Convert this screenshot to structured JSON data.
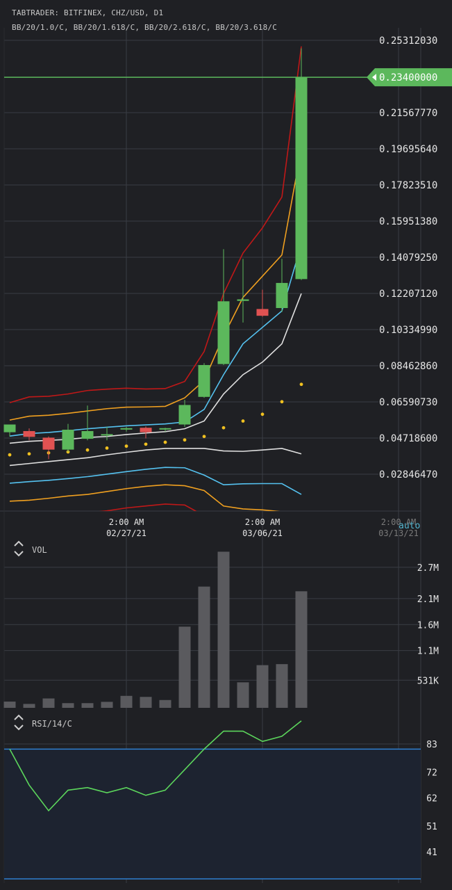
{
  "header": {
    "title": "TABTRADER: BITFINEX, CHZ/USD, D1",
    "indicators": "BB/20/1.0/C, BB/20/1.618/C, BB/20/2.618/C, BB/20/3.618/C"
  },
  "auto_label": "auto",
  "colors": {
    "background": "#1f2024",
    "grid": "#3a3d44",
    "up": "#5cb85c",
    "down": "#e05252",
    "price_line": "#5cb85c",
    "bb1": "#55c2f0",
    "bb1618": "#f0a020",
    "bb2618": "#c01818",
    "bb3618": "#e0e0e0",
    "sar": "#f0c020",
    "volume": "#5a5a5e",
    "rsi": "#5cd65c",
    "rsi_band": "#2f7fd0"
  },
  "chart_data": [
    {
      "type": "candlestick",
      "title": "TABTRADER: BITFINEX, CHZ/USD, D1",
      "y_ticks": [
        "0.25312030",
        "0.23400000",
        "0.21567770",
        "0.19695640",
        "0.17823510",
        "0.15951380",
        "0.14079250",
        "0.12207120",
        "0.10334990",
        "0.08462860",
        "0.06590730",
        "0.04718600",
        "0.02846470"
      ],
      "ylim": [
        0.02,
        0.26
      ],
      "x_ticks": [
        {
          "time": "2:00 AM",
          "date": "02/27/21",
          "index": 6
        },
        {
          "time": "2:00 AM",
          "date": "03/06/21",
          "index": 13
        },
        {
          "time": "2:00 AM",
          "date": "03/13/21",
          "index": 20
        }
      ],
      "last_price_label": "0.23400000",
      "last_price": 0.234,
      "candles": [
        {
          "open": 0.0502,
          "high": 0.053,
          "low": 0.048,
          "close": 0.0542
        },
        {
          "open": 0.0508,
          "high": 0.0522,
          "low": 0.046,
          "close": 0.0478
        },
        {
          "open": 0.0474,
          "high": 0.048,
          "low": 0.0363,
          "close": 0.0412
        },
        {
          "open": 0.0412,
          "high": 0.0545,
          "low": 0.04,
          "close": 0.0515
        },
        {
          "open": 0.0468,
          "high": 0.064,
          "low": 0.046,
          "close": 0.0508
        },
        {
          "open": 0.049,
          "high": 0.053,
          "low": 0.046,
          "close": 0.0492
        },
        {
          "open": 0.052,
          "high": 0.053,
          "low": 0.0505,
          "close": 0.0523
        },
        {
          "open": 0.0525,
          "high": 0.0532,
          "low": 0.047,
          "close": 0.0502
        },
        {
          "open": 0.0518,
          "high": 0.0525,
          "low": 0.0505,
          "close": 0.0523
        },
        {
          "open": 0.0542,
          "high": 0.067,
          "low": 0.053,
          "close": 0.0643
        },
        {
          "open": 0.0685,
          "high": 0.086,
          "low": 0.068,
          "close": 0.085
        },
        {
          "open": 0.0855,
          "high": 0.145,
          "low": 0.085,
          "close": 0.118
        },
        {
          "open": 0.1182,
          "high": 0.14,
          "low": 0.107,
          "close": 0.119
        },
        {
          "open": 0.114,
          "high": 0.124,
          "low": 0.11,
          "close": 0.1105
        },
        {
          "open": 0.1145,
          "high": 0.14,
          "low": 0.1125,
          "close": 0.1275
        },
        {
          "open": 0.1295,
          "high": 0.249,
          "low": 0.129,
          "close": 0.234
        }
      ],
      "bb_upper_1": [
        0.0482,
        0.0495,
        0.0501,
        0.051,
        0.052,
        0.0528,
        0.0535,
        0.054,
        0.0545,
        0.0555,
        0.062,
        0.08,
        0.096,
        0.1045,
        0.113,
        0.1475
      ],
      "bb_upper_1618": [
        0.0565,
        0.0585,
        0.059,
        0.06,
        0.0612,
        0.0624,
        0.0632,
        0.0633,
        0.0636,
        0.068,
        0.077,
        0.1,
        0.12,
        0.131,
        0.142,
        0.197
      ],
      "bb_upper_2618": [
        0.0655,
        0.0685,
        0.0688,
        0.07,
        0.0718,
        0.0725,
        0.073,
        0.0726,
        0.0728,
        0.0765,
        0.092,
        0.122,
        0.143,
        0.156,
        0.172,
        0.25
      ],
      "bb_middle": [
        0.0445,
        0.0455,
        0.046,
        0.0465,
        0.0475,
        0.048,
        0.049,
        0.0498,
        0.0505,
        0.052,
        0.056,
        0.07,
        0.08,
        0.0865,
        0.096,
        0.122
      ],
      "bb_lower_1": [
        0.0238,
        0.0246,
        0.0253,
        0.0262,
        0.0272,
        0.0285,
        0.0298,
        0.031,
        0.032,
        0.0318,
        0.028,
        0.023,
        0.0235,
        0.0236,
        0.0236,
        0.018
      ],
      "bb_lower_1618": [
        0.0145,
        0.015,
        0.016,
        0.0172,
        0.018,
        0.0195,
        0.021,
        0.0222,
        0.023,
        0.0225,
        0.02,
        0.012,
        0.0105,
        0.01,
        0.009,
        0.0
      ],
      "bb_lower_2618": [
        0.0055,
        0.006,
        0.0068,
        0.0075,
        0.0085,
        0.0095,
        0.011,
        0.012,
        0.013,
        0.0125,
        0.007,
        0.0,
        -0.002,
        -0.003,
        -0.005,
        -0.01
      ],
      "bb_lower_3618": [
        0.033,
        0.034,
        0.035,
        0.036,
        0.037,
        0.0385,
        0.0398,
        0.041,
        0.0418,
        0.0418,
        0.0418,
        0.0405,
        0.0403,
        0.041,
        0.0418,
        0.039
      ],
      "parabolic_sar": [
        0.0385,
        0.039,
        0.0395,
        0.04,
        0.041,
        0.042,
        0.043,
        0.044,
        0.045,
        0.0462,
        0.048,
        0.0525,
        0.056,
        0.0595,
        0.066,
        0.075
      ]
    },
    {
      "type": "bar",
      "title": "VOL",
      "y_ticks": [
        "2.7M",
        "2.1M",
        "1.6M",
        "1.1M",
        "531K"
      ],
      "y_tick_values": [
        2700000,
        2100000,
        1600000,
        1100000,
        531000
      ],
      "ylim": [
        0,
        3100000
      ],
      "values": [
        120000,
        75000,
        180000,
        90000,
        90000,
        115000,
        230000,
        210000,
        150000,
        1560000,
        2330000,
        3000000,
        490000,
        820000,
        840000,
        2240000
      ]
    },
    {
      "type": "line",
      "title": "RSI/14/C",
      "y_ticks": [
        "83",
        "72",
        "62",
        "51",
        "41"
      ],
      "y_tick_values": [
        83,
        72,
        62,
        51,
        41
      ],
      "ylim": [
        30,
        90
      ],
      "bands": [
        81,
        30
      ],
      "values": [
        81,
        67,
        57,
        65,
        66,
        64,
        66,
        63,
        65,
        73,
        81,
        88,
        88,
        84,
        86,
        92
      ]
    }
  ]
}
